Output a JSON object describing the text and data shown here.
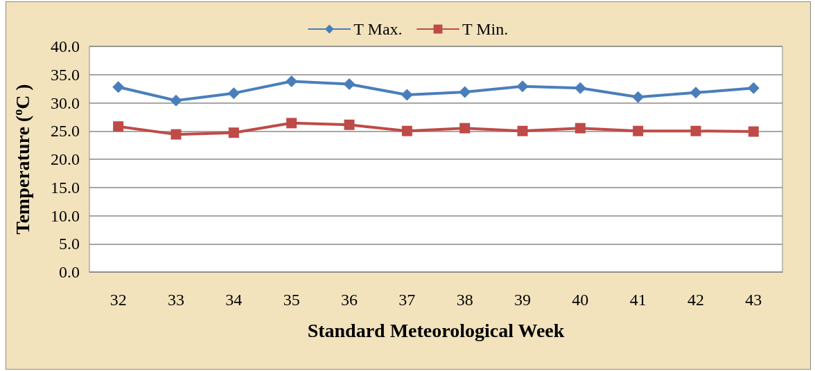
{
  "chart_data": {
    "type": "line",
    "xlabel": "Standard Meteorological Week",
    "ylabel": "Temperature ($^{o}$C )",
    "categories": [
      "32",
      "33",
      "34",
      "35",
      "36",
      "37",
      "38",
      "39",
      "40",
      "41",
      "42",
      "43"
    ],
    "series": [
      {
        "name": "T Max.",
        "color": "#4a7ebb",
        "marker": "diamond",
        "values": [
          32.8,
          30.4,
          31.7,
          33.8,
          33.3,
          31.4,
          31.9,
          32.9,
          32.6,
          31.0,
          31.8,
          32.6
        ]
      },
      {
        "name": "T Min.",
        "color": "#be4b48",
        "marker": "square",
        "values": [
          25.8,
          24.4,
          24.7,
          26.4,
          26.1,
          25.0,
          25.5,
          25.0,
          25.5,
          25.0,
          25.0,
          24.9
        ]
      }
    ],
    "ylim": [
      0,
      40
    ],
    "yticks": [
      {
        "value": 0,
        "label": "0.0"
      },
      {
        "value": 5,
        "label": "5.0"
      },
      {
        "value": 10,
        "label": "10.0"
      },
      {
        "value": 15,
        "label": "15.0"
      },
      {
        "value": 20,
        "label": "20.0"
      },
      {
        "value": 25,
        "label": "25.0"
      },
      {
        "value": 30,
        "label": "30.0"
      },
      {
        "value": 35,
        "label": "35.0"
      },
      {
        "value": 40,
        "label": "40.0"
      }
    ],
    "grid": "y",
    "legend": "top"
  }
}
